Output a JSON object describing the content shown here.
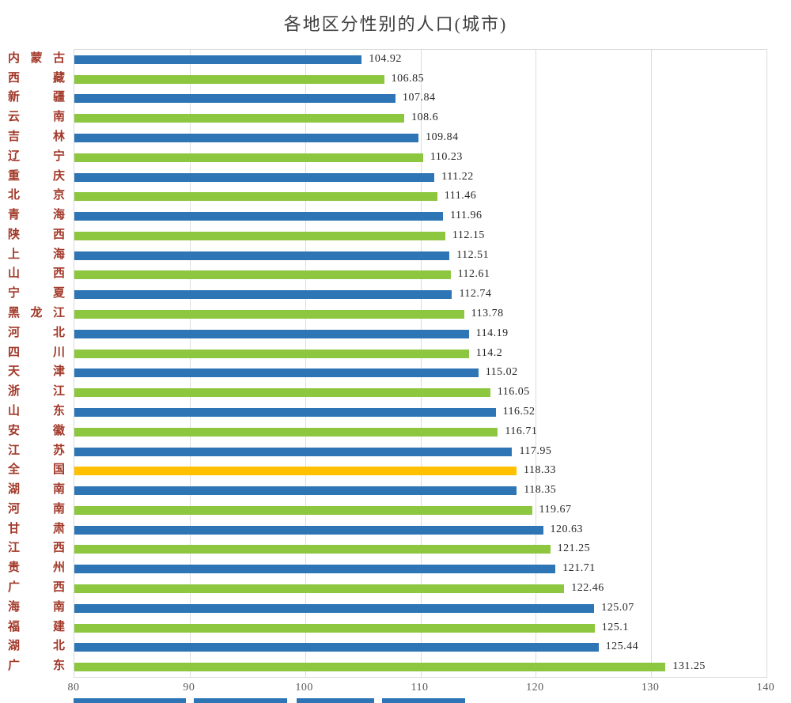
{
  "chart_data": {
    "type": "bar",
    "orientation": "horizontal",
    "title": "各地区分性别的人口(城市)",
    "xlabel": "",
    "ylabel": "",
    "xlim": [
      80,
      140
    ],
    "x_ticks": [
      "80",
      "90",
      "100",
      "110",
      "120",
      "130",
      "140"
    ],
    "grid": "vertical",
    "legend_position": "none",
    "categories": [
      "内蒙古",
      "西藏",
      "新疆",
      "云南",
      "吉林",
      "辽宁",
      "重庆",
      "北京",
      "青海",
      "陕西",
      "上海",
      "山西",
      "宁夏",
      "黑龙江",
      "河北",
      "四川",
      "天津",
      "浙江",
      "山东",
      "安徽",
      "江苏",
      "全国",
      "湖南",
      "河南",
      "甘肃",
      "江西",
      "贵州",
      "广西",
      "海南",
      "福建",
      "湖北",
      "广东"
    ],
    "values": [
      104.92,
      106.85,
      107.84,
      108.6,
      109.84,
      110.23,
      111.22,
      111.46,
      111.96,
      112.15,
      112.51,
      112.61,
      112.74,
      113.78,
      114.19,
      114.2,
      115.02,
      116.05,
      116.52,
      116.71,
      117.95,
      118.33,
      118.35,
      119.67,
      120.63,
      121.25,
      121.71,
      122.46,
      125.07,
      125.1,
      125.44,
      131.25
    ],
    "value_labels": [
      "104.92",
      "106.85",
      "107.84",
      "108.6",
      "109.84",
      "110.23",
      "111.22",
      "111.46",
      "111.96",
      "112.15",
      "112.51",
      "112.61",
      "112.74",
      "113.78",
      "114.19",
      "114.2",
      "115.02",
      "116.05",
      "116.52",
      "116.71",
      "117.95",
      "118.33",
      "118.35",
      "119.67",
      "120.63",
      "121.25",
      "121.71",
      "122.46",
      "125.07",
      "125.1",
      "125.44",
      "131.25"
    ],
    "bar_color_keys": [
      "blue",
      "green",
      "blue",
      "green",
      "blue",
      "green",
      "blue",
      "green",
      "blue",
      "green",
      "blue",
      "green",
      "blue",
      "green",
      "blue",
      "green",
      "blue",
      "green",
      "blue",
      "green",
      "blue",
      "highlight",
      "blue",
      "green",
      "blue",
      "green",
      "blue",
      "green",
      "blue",
      "green",
      "blue",
      "green"
    ],
    "colors": {
      "blue": "#2e75b6",
      "green": "#8dc63f",
      "highlight": "#ffc000"
    },
    "highlight_category": "全国",
    "axis_label_color": "#a2392a",
    "value_label_color": "#262626"
  },
  "bottom_strip": {
    "color": "#2e75b6",
    "segments": [
      [
        93,
        142
      ],
      [
        245,
        118
      ],
      [
        375,
        98
      ],
      [
        483,
        105
      ]
    ]
  }
}
